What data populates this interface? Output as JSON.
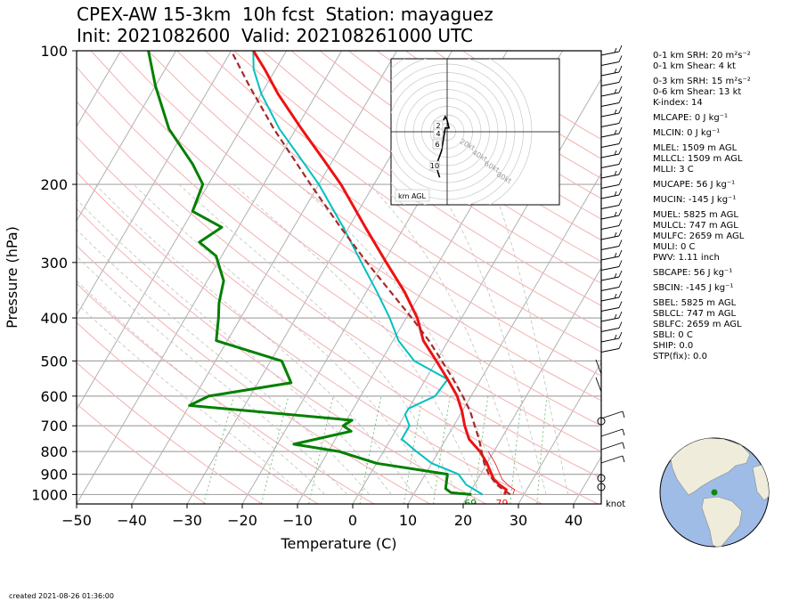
{
  "title": {
    "line1": "CPEX-AW 15-3km  10h fcst  Station: mayaguez",
    "line2": "Init: 2021082600  Valid: 202108261000 UTC"
  },
  "footer": "created 2021-08-26 01:36:00",
  "params": [
    {
      "text": "0-1 km SRH: 20 m²s⁻²",
      "gap": false
    },
    {
      "text": "0-1 km Shear: 4 kt",
      "gap": false
    },
    {
      "text": "0-3 km SRH: 15 m²s⁻²",
      "gap": true
    },
    {
      "text": "0-6 km Shear: 13 kt",
      "gap": false
    },
    {
      "text": "K-index: 14",
      "gap": false
    },
    {
      "text": "MLCAPE: 0 J kg⁻¹",
      "gap": true
    },
    {
      "text": "MLCIN: 0 J kg⁻¹",
      "gap": true
    },
    {
      "text": "MLEL: 1509 m AGL",
      "gap": true
    },
    {
      "text": "MLLCL: 1509 m AGL",
      "gap": false
    },
    {
      "text": "MLLI: 3 C",
      "gap": false
    },
    {
      "text": "MUCAPE: 56 J kg⁻¹",
      "gap": true
    },
    {
      "text": "MUCIN: -145 J kg⁻¹",
      "gap": true
    },
    {
      "text": "MUEL: 5825 m AGL",
      "gap": true
    },
    {
      "text": "MULCL: 747 m AGL",
      "gap": false
    },
    {
      "text": "MULFC: 2659 m AGL",
      "gap": false
    },
    {
      "text": "MULI: 0 C",
      "gap": false
    },
    {
      "text": "PWV: 1.11 inch",
      "gap": false
    },
    {
      "text": "SBCAPE: 56 J kg⁻¹",
      "gap": true
    },
    {
      "text": "SBCIN: -145 J kg⁻¹",
      "gap": true
    },
    {
      "text": "SBEL: 5825 m AGL",
      "gap": true
    },
    {
      "text": "SBLCL: 747 m AGL",
      "gap": false
    },
    {
      "text": "SBLFC: 2659 m AGL",
      "gap": false
    },
    {
      "text": "SBLI: 0 C",
      "gap": false
    },
    {
      "text": "SHIP: 0.0",
      "gap": false
    },
    {
      "text": "STP(fix): 0.0",
      "gap": false
    }
  ],
  "chart_data": {
    "type": "line",
    "subtype": "skew-T log-P sounding",
    "xlabel": "Temperature (C)",
    "ylabel": "Pressure (hPa)",
    "xlim": [
      -50,
      45
    ],
    "ylim": [
      1050,
      100
    ],
    "y_scale": "log",
    "grid": true,
    "x_ticks": [
      -50,
      -40,
      -30,
      -20,
      -10,
      0,
      10,
      20,
      30,
      40
    ],
    "y_ticks": [
      100,
      200,
      300,
      400,
      500,
      600,
      700,
      800,
      900,
      1000
    ],
    "colors": {
      "temperature": "#ee1111",
      "dewpoint": "#008000",
      "parcel": "#a52a2a",
      "virtual": "#00c0c0",
      "isotherm": "#b0b0b0",
      "dry_adiabat": "#f4b0b0",
      "moist_adiabat": "#c0c0c0",
      "mixing_ratio": "#80c080"
    },
    "series": [
      {
        "key": "temperature",
        "values": [
          [
            1000,
            26.5
          ],
          [
            975,
            26.3
          ],
          [
            950,
            24.5
          ],
          [
            925,
            23.0
          ],
          [
            900,
            22.0
          ],
          [
            850,
            20.0
          ],
          [
            800,
            17.5
          ],
          [
            750,
            14.2
          ],
          [
            700,
            12.0
          ],
          [
            650,
            10.0
          ],
          [
            600,
            7.5
          ],
          [
            550,
            4.0
          ],
          [
            500,
            0.0
          ],
          [
            450,
            -4.5
          ],
          [
            400,
            -8.0
          ],
          [
            350,
            -13.0
          ],
          [
            300,
            -19.5
          ],
          [
            250,
            -27.0
          ],
          [
            200,
            -36.0
          ],
          [
            175,
            -42.0
          ],
          [
            150,
            -49.0
          ],
          [
            125,
            -57.0
          ],
          [
            110,
            -62.0
          ],
          [
            100,
            -66.0
          ]
        ]
      },
      {
        "key": "dewpoint",
        "values": [
          [
            1000,
            20.5
          ],
          [
            990,
            16.6
          ],
          [
            970,
            15.2
          ],
          [
            900,
            14.0
          ],
          [
            850,
            0.0
          ],
          [
            800,
            -8.0
          ],
          [
            770,
            -17.0
          ],
          [
            720,
            -8.0
          ],
          [
            700,
            -10.0
          ],
          [
            680,
            -9.0
          ],
          [
            630,
            -40.0
          ],
          [
            600,
            -37.5
          ],
          [
            560,
            -24.0
          ],
          [
            500,
            -28.0
          ],
          [
            450,
            -42.0
          ],
          [
            400,
            -44.0
          ],
          [
            370,
            -45.5
          ],
          [
            330,
            -47.0
          ],
          [
            290,
            -51.0
          ],
          [
            270,
            -55.5
          ],
          [
            250,
            -53.0
          ],
          [
            230,
            -60.0
          ],
          [
            200,
            -61.0
          ],
          [
            180,
            -65.0
          ],
          [
            150,
            -73.0
          ],
          [
            120,
            -80.0
          ],
          [
            100,
            -85.0
          ]
        ]
      },
      {
        "key": "virtual",
        "values": [
          [
            1000,
            22.5
          ],
          [
            950,
            18.5
          ],
          [
            900,
            16.0
          ],
          [
            850,
            10.0
          ],
          [
            800,
            6.0
          ],
          [
            750,
            2.0
          ],
          [
            700,
            2.0
          ],
          [
            660,
            0.0
          ],
          [
            640,
            0.0
          ],
          [
            600,
            3.5
          ],
          [
            550,
            4.0
          ],
          [
            500,
            -4.0
          ],
          [
            450,
            -9.0
          ],
          [
            400,
            -13.0
          ],
          [
            350,
            -18.0
          ],
          [
            300,
            -24.0
          ],
          [
            250,
            -31.0
          ],
          [
            200,
            -40.0
          ],
          [
            175,
            -46.0
          ],
          [
            150,
            -53.0
          ],
          [
            125,
            -60.0
          ],
          [
            110,
            -64.0
          ],
          [
            100,
            -66.0
          ]
        ]
      },
      {
        "key": "parcel",
        "values": [
          [
            1000,
            27.5
          ],
          [
            950,
            24.0
          ],
          [
            900,
            21.5
          ],
          [
            850,
            19.5
          ],
          [
            800,
            17.8
          ],
          [
            750,
            16.0
          ],
          [
            700,
            13.8
          ],
          [
            650,
            11.5
          ],
          [
            600,
            8.5
          ],
          [
            550,
            5.0
          ],
          [
            500,
            1.0
          ],
          [
            450,
            -3.5
          ],
          [
            400,
            -9.0
          ],
          [
            350,
            -15.5
          ],
          [
            300,
            -23.0
          ],
          [
            250,
            -31.5
          ],
          [
            200,
            -41.5
          ],
          [
            150,
            -54.0
          ],
          [
            120,
            -63.0
          ],
          [
            100,
            -70.0
          ]
        ]
      }
    ],
    "surface_labels": {
      "temperature": "79",
      "dewpoint": "69"
    },
    "wind_unit": "knot",
    "hodograph": {
      "label": "km AGL",
      "ring_labels": [
        "20kt",
        "40kt",
        "60kt",
        "80kt"
      ],
      "height_labels": [
        "2",
        "4",
        "6",
        "10"
      ],
      "points": [
        [
          -4,
          -12
        ],
        [
          -6,
          -9
        ],
        [
          -3,
          -5
        ],
        [
          -2,
          -2
        ],
        [
          -1,
          1
        ],
        [
          1,
          1
        ],
        [
          0,
          3
        ],
        [
          -1,
          4
        ],
        [
          -2,
          3
        ]
      ]
    },
    "map": {
      "marker": "station"
    }
  }
}
